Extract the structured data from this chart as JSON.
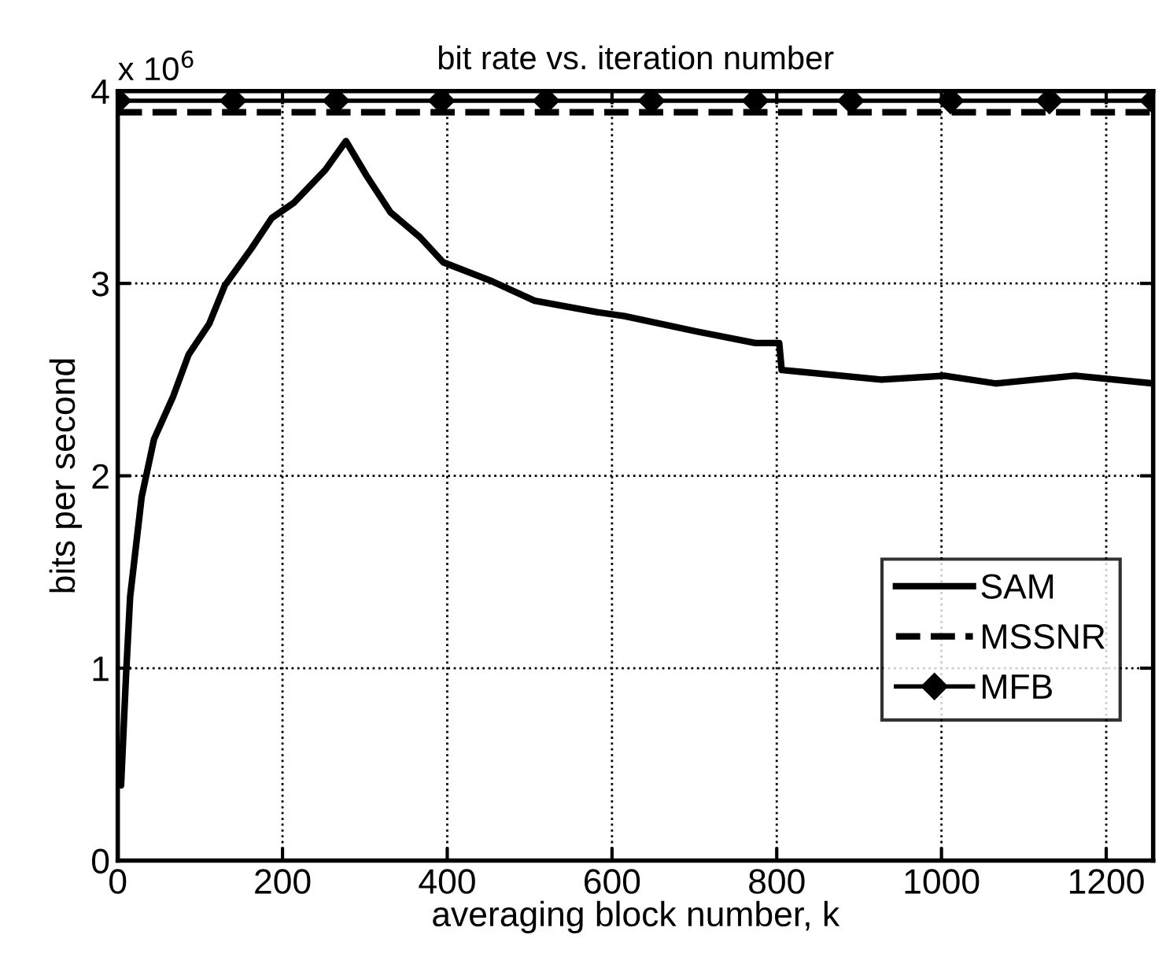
{
  "chart_data": {
    "type": "line",
    "title": "bit rate vs. iteration number",
    "xlabel": "averaging block number, k",
    "ylabel": "bits per second",
    "annotations": [
      "x 10$^{6}$"
    ],
    "xlim": [
      0,
      1257
    ],
    "xticks": [
      0,
      200,
      400,
      600,
      800,
      1000,
      1200
    ],
    "ylim": [
      0,
      4
    ],
    "yticks": [
      0,
      1,
      2,
      3,
      4
    ],
    "grid": true,
    "legend": "lower right",
    "series": [
      {
        "name": "SAM",
        "color": "#000000",
        "line_style": "solid",
        "marker": "none",
        "x": [
          2,
          4,
          10,
          15,
          29,
          44,
          67,
          86,
          111,
          130,
          162,
          187,
          214,
          252,
          277,
          302,
          331,
          367,
          395,
          455,
          506,
          583,
          615,
          703,
          774,
          803,
          806,
          927,
          1003,
          1066,
          1162,
          1257
        ],
        "values": [
          0.4,
          0.39,
          0.96,
          1.37,
          1.89,
          2.19,
          2.41,
          2.63,
          2.79,
          2.99,
          3.18,
          3.34,
          3.42,
          3.59,
          3.74,
          3.56,
          3.37,
          3.24,
          3.11,
          3.01,
          2.91,
          2.85,
          2.83,
          2.75,
          2.69,
          2.69,
          2.55,
          2.5,
          2.52,
          2.48,
          2.52,
          2.48
        ]
      },
      {
        "name": "MSSNR",
        "color": "#000000",
        "line_style": "dashed",
        "marker": "none",
        "x": [
          0,
          1257
        ],
        "values": [
          3.89,
          3.89
        ]
      },
      {
        "name": "MFB",
        "color": "#000000",
        "line_style": "solid",
        "marker": "diamond",
        "x": [
          0,
          140,
          265,
          393,
          520,
          648,
          774,
          890,
          1011,
          1131,
          1257
        ],
        "values": [
          3.95,
          3.95,
          3.95,
          3.95,
          3.95,
          3.95,
          3.95,
          3.95,
          3.95,
          3.95,
          3.95
        ]
      }
    ]
  }
}
